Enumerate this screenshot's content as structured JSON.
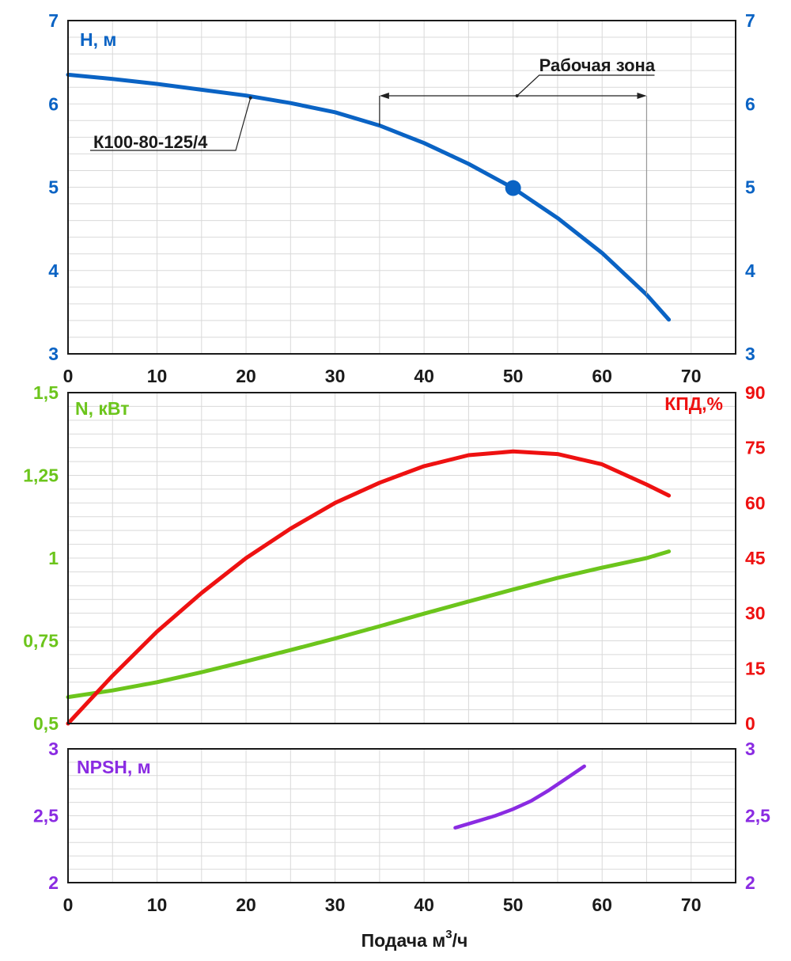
{
  "colors": {
    "head": "#0a63c4",
    "power": "#6cc51c",
    "efficiency": "#ee1111",
    "npsh": "#8a2be2",
    "axis": "#1a1a1a",
    "grid": "#d9d9d9"
  },
  "chart_data": [
    {
      "id": "head",
      "type": "line",
      "y_label": "H, м",
      "xlim": [
        0,
        75
      ],
      "ylim": [
        3,
        7
      ],
      "x_ticks": [
        "0",
        "10",
        "20",
        "30",
        "40",
        "50",
        "60",
        "70"
      ],
      "x_tick_values": [
        0,
        10,
        20,
        30,
        40,
        50,
        60,
        70
      ],
      "y_ticks_left": [
        "3",
        "4",
        "5",
        "6",
        "7"
      ],
      "y_tick_values": [
        3,
        4,
        5,
        6,
        7
      ],
      "y_ticks_right": [
        "3",
        "4",
        "5",
        "6",
        "7"
      ],
      "grid": true,
      "series": [
        {
          "name": "К100-80-125/4",
          "x": [
            0,
            5,
            10,
            15,
            20,
            25,
            30,
            35,
            40,
            45,
            50,
            55,
            60,
            65,
            67.5
          ],
          "y": [
            6.35,
            6.3,
            6.24,
            6.17,
            6.1,
            6.01,
            5.9,
            5.74,
            5.53,
            5.28,
            4.99,
            4.63,
            4.21,
            3.71,
            3.41
          ]
        }
      ],
      "operating_point": {
        "x": 50,
        "y": 4.99
      },
      "working_zone": {
        "label": "Рабочая зона",
        "x_start": 35,
        "x_end": 65
      }
    },
    {
      "id": "power-efficiency",
      "type": "line",
      "y_label_left": "N, кВт",
      "y_label_right": "КПД,%",
      "xlim": [
        0,
        75
      ],
      "ylim_left": [
        0.5,
        1.5
      ],
      "ylim_right": [
        0,
        90
      ],
      "y_ticks_left": [
        "0,5",
        "0,75",
        "1",
        "1,25",
        "1,5"
      ],
      "y_tick_values_left": [
        0.5,
        0.75,
        1,
        1.25,
        1.5
      ],
      "y_ticks_right": [
        "0",
        "15",
        "30",
        "45",
        "60",
        "75",
        "90"
      ],
      "y_tick_values_right": [
        0,
        15,
        30,
        45,
        60,
        75,
        90
      ],
      "grid": true,
      "series": [
        {
          "name": "N",
          "axis": "left",
          "x": [
            0,
            5,
            10,
            15,
            20,
            25,
            30,
            35,
            40,
            45,
            50,
            55,
            60,
            65,
            67.5
          ],
          "y": [
            0.58,
            0.6,
            0.625,
            0.655,
            0.688,
            0.722,
            0.757,
            0.794,
            0.832,
            0.869,
            0.905,
            0.94,
            0.971,
            1.0,
            1.02
          ]
        },
        {
          "name": "КПД",
          "axis": "right",
          "x": [
            0,
            5,
            10,
            15,
            20,
            25,
            30,
            35,
            40,
            45,
            50,
            55,
            60,
            65,
            67.5
          ],
          "y": [
            0,
            13,
            25,
            35.5,
            45,
            53,
            60,
            65.5,
            70,
            73,
            74,
            73.3,
            70.5,
            65,
            62
          ]
        }
      ]
    },
    {
      "id": "npsh",
      "type": "line",
      "y_label": "NPSH, м",
      "xlim": [
        0,
        75
      ],
      "ylim": [
        2,
        3
      ],
      "x_ticks": [
        "0",
        "10",
        "20",
        "30",
        "40",
        "50",
        "60",
        "70"
      ],
      "x_tick_values": [
        0,
        10,
        20,
        30,
        40,
        50,
        60,
        70
      ],
      "y_ticks_left": [
        "2",
        "2,5",
        "3"
      ],
      "y_tick_values": [
        2,
        2.5,
        3
      ],
      "y_ticks_right": [
        "2",
        "2,5",
        "3"
      ],
      "xlabel_main": "Подача м",
      "xlabel_sup": "3",
      "xlabel_tail": "/ч",
      "grid": true,
      "series": [
        {
          "name": "NPSH",
          "x": [
            43.5,
            46,
            48,
            50,
            52,
            54,
            56,
            58
          ],
          "y": [
            2.41,
            2.46,
            2.5,
            2.55,
            2.61,
            2.69,
            2.78,
            2.87
          ]
        }
      ]
    }
  ]
}
